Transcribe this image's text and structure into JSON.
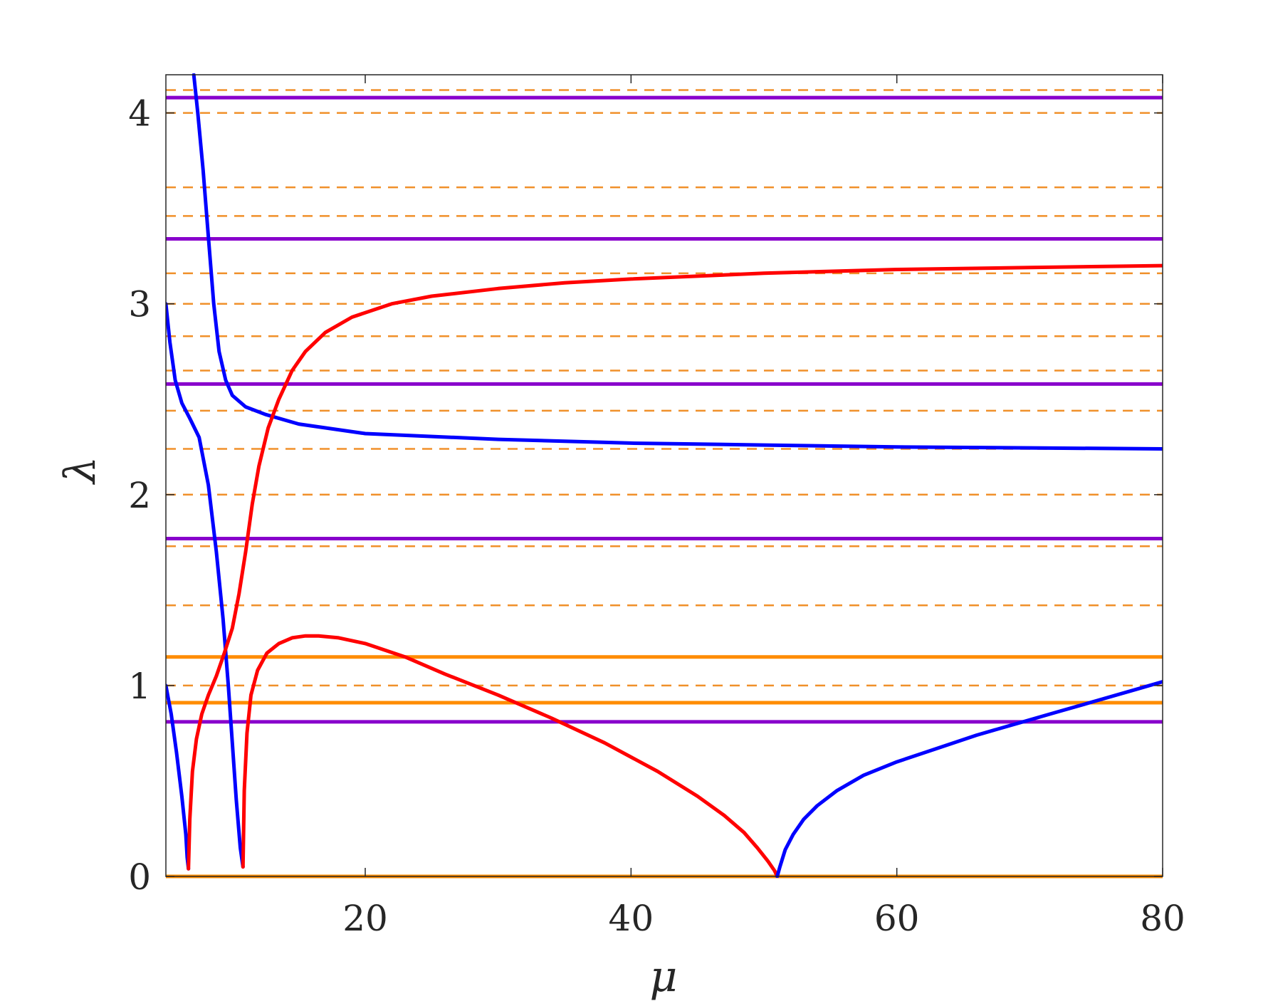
{
  "chart_data": {
    "type": "line",
    "title": "",
    "xlabel": "μ",
    "ylabel": "λ",
    "xlim": [
      5,
      80
    ],
    "ylim": [
      0,
      4.2
    ],
    "xticks": [
      20,
      40,
      60,
      80
    ],
    "yticks": [
      0,
      1,
      2,
      3,
      4
    ],
    "grid": false,
    "legend": "none",
    "colors": {
      "blue_branch": "#0000ff",
      "red_branch": "#ff0000",
      "purple_level": "#8800cc",
      "orange_level": "#ff8c00",
      "orange_dashed_level": "#f0902a",
      "axes": "#262626"
    },
    "horizontal_levels": {
      "purple_solid": [
        0.81,
        1.77,
        2.58,
        3.34,
        4.08
      ],
      "orange_solid": [
        0.0,
        0.91,
        1.15
      ],
      "orange_dashed": [
        1.0,
        1.42,
        1.73,
        2.0,
        2.24,
        2.44,
        2.65,
        2.83,
        3.0,
        3.16,
        3.46,
        3.61,
        4.0,
        4.12
      ]
    },
    "series": [
      {
        "color": "blue",
        "x": [
          5.0,
          5.4,
          5.8,
          6.2,
          6.5,
          6.6,
          6.7
        ],
        "y": [
          1.0,
          0.85,
          0.65,
          0.42,
          0.22,
          0.1,
          0.04
        ]
      },
      {
        "color": "blue",
        "x": [
          5.0,
          5.3,
          5.7,
          6.2,
          6.8,
          7.5,
          8.2,
          8.8,
          9.3,
          9.7,
          10.0,
          10.3,
          10.6,
          10.8
        ],
        "y": [
          3.0,
          2.8,
          2.6,
          2.48,
          2.4,
          2.3,
          2.05,
          1.7,
          1.35,
          1.0,
          0.7,
          0.4,
          0.15,
          0.05
        ]
      },
      {
        "color": "blue",
        "x": [
          7.1,
          7.4,
          7.8,
          8.2,
          8.6,
          9.0,
          9.5,
          10.0,
          11.0,
          12.5,
          15.0,
          20.0,
          30.0,
          40.0,
          50.0,
          60.0,
          70.0,
          80.0
        ],
        "y": [
          4.2,
          4.0,
          3.7,
          3.35,
          3.0,
          2.75,
          2.6,
          2.52,
          2.46,
          2.42,
          2.37,
          2.32,
          2.29,
          2.27,
          2.26,
          2.25,
          2.245,
          2.24
        ]
      },
      {
        "color": "red",
        "x": [
          6.7,
          6.8,
          7.0,
          7.3,
          7.7,
          8.2,
          8.8,
          9.4,
          10.0,
          10.5,
          11.0,
          11.5,
          12.0,
          12.7,
          13.5,
          14.5,
          15.5,
          17.0,
          19.0,
          22.0,
          25.0,
          30.0,
          35.0,
          40.0,
          50.0,
          60.0,
          70.0,
          80.0
        ],
        "y": [
          0.04,
          0.3,
          0.55,
          0.72,
          0.85,
          0.95,
          1.05,
          1.17,
          1.3,
          1.48,
          1.7,
          1.95,
          2.15,
          2.35,
          2.5,
          2.65,
          2.75,
          2.85,
          2.93,
          3.0,
          3.04,
          3.08,
          3.11,
          3.13,
          3.16,
          3.18,
          3.19,
          3.2
        ]
      },
      {
        "color": "red",
        "x": [
          10.8,
          10.9,
          11.1,
          11.4,
          11.9,
          12.6,
          13.5,
          14.5,
          15.5,
          16.5,
          18.0,
          20.0,
          23.0,
          26.0,
          30.0,
          34.0,
          38.0,
          42.0,
          45.0,
          47.0,
          48.5,
          49.5,
          50.3,
          50.8,
          51.0
        ],
        "y": [
          0.05,
          0.45,
          0.75,
          0.95,
          1.08,
          1.17,
          1.22,
          1.25,
          1.26,
          1.26,
          1.25,
          1.22,
          1.15,
          1.06,
          0.95,
          0.83,
          0.7,
          0.55,
          0.42,
          0.32,
          0.23,
          0.15,
          0.08,
          0.03,
          0.0
        ]
      },
      {
        "color": "blue",
        "x": [
          51.0,
          51.2,
          51.6,
          52.2,
          53.0,
          54.0,
          55.5,
          57.5,
          60.0,
          63.0,
          66.0,
          69.0,
          72.0,
          75.0,
          78.0,
          80.0
        ],
        "y": [
          0.0,
          0.05,
          0.14,
          0.22,
          0.3,
          0.37,
          0.45,
          0.53,
          0.6,
          0.67,
          0.74,
          0.8,
          0.86,
          0.92,
          0.98,
          1.02
        ]
      }
    ]
  }
}
